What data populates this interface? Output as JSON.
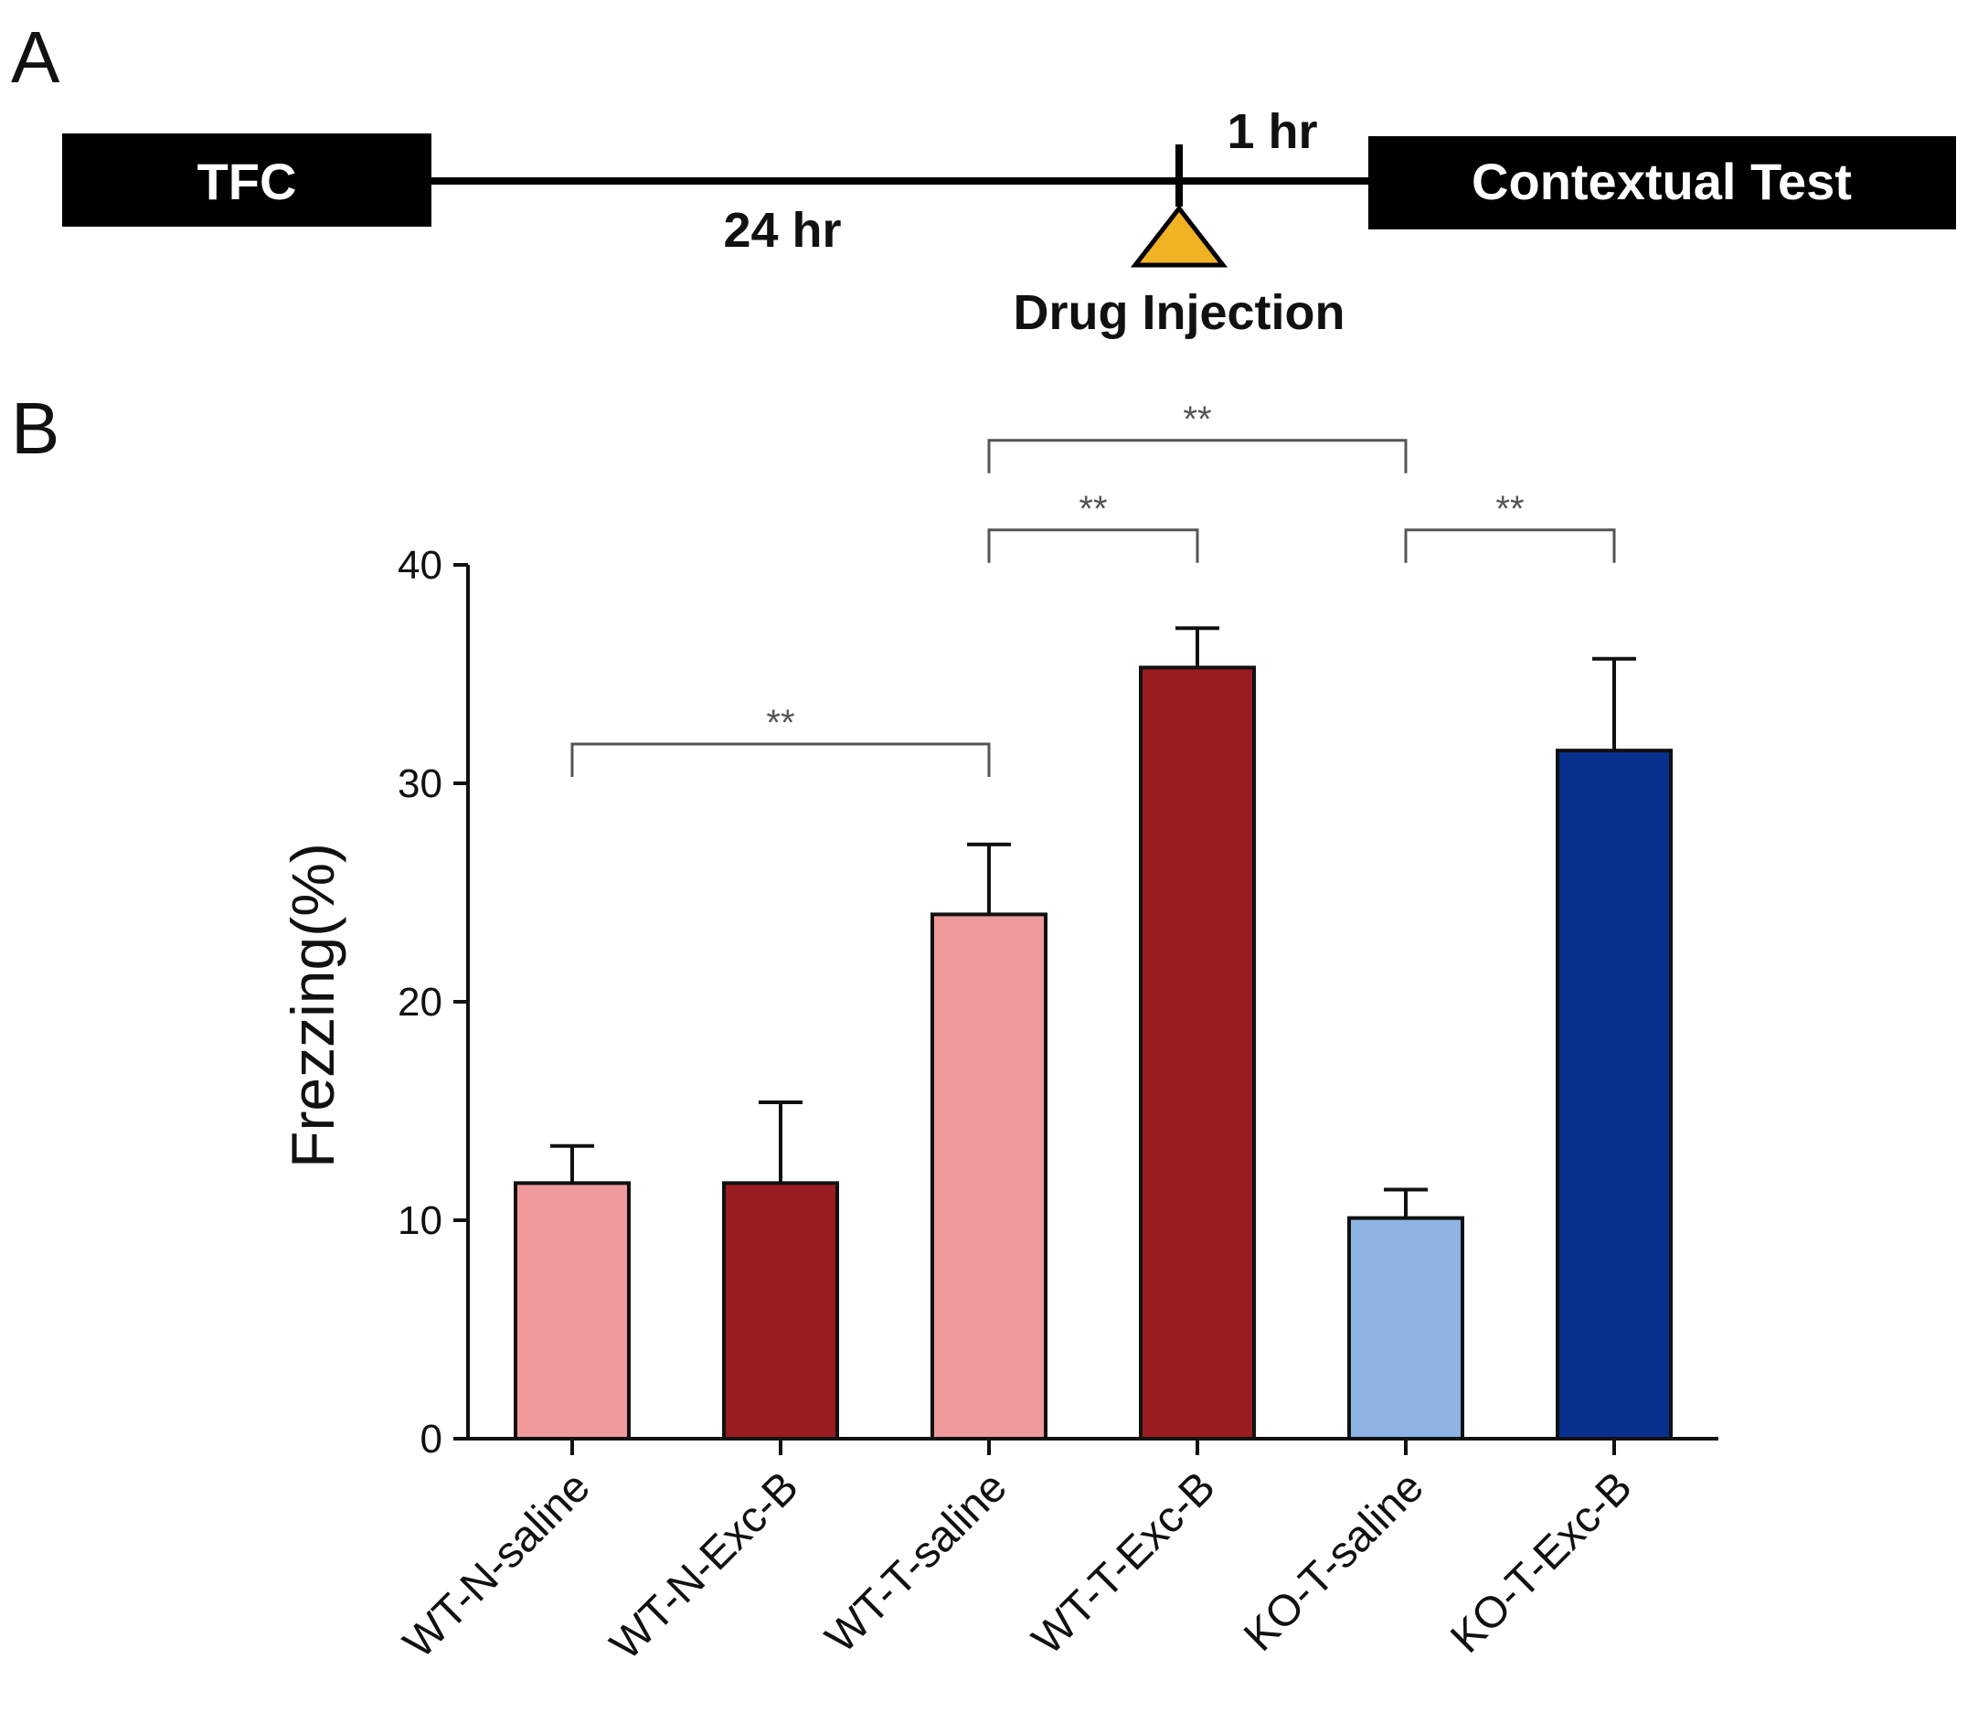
{
  "panel_a": {
    "label": "A",
    "start_box": "TFC",
    "end_box": "Contextual Test",
    "interval_1": "24 hr",
    "interval_2": "1 hr",
    "event": "Drug Injection",
    "colors": {
      "box": "#000000",
      "marker": "#f0b323"
    }
  },
  "panel_b": {
    "label": "B"
  },
  "chart_data": {
    "type": "bar",
    "title": "",
    "xlabel": "",
    "ylabel": "Frezzing(%)",
    "ylim": [
      0,
      40
    ],
    "yticks": [
      0,
      10,
      20,
      30,
      40
    ],
    "categories": [
      "WT-N-saline",
      "WT-N-Exc-B",
      "WT-T-saline",
      "WT-T-Exc-B",
      "KO-T-saline",
      "KO-T-Exc-B"
    ],
    "values": [
      11.7,
      11.7,
      24.0,
      35.3,
      10.1,
      31.5
    ],
    "errors": [
      1.7,
      3.7,
      3.2,
      1.8,
      1.3,
      4.2
    ],
    "bar_colors": [
      "#ef9a9b",
      "#991c20",
      "#ef9a9b",
      "#991c20",
      "#8db4e2",
      "#08308e"
    ],
    "significance": [
      {
        "from": 0,
        "to": 2,
        "label": "**",
        "level": 31.8
      },
      {
        "from": 2,
        "to": 3,
        "label": "**",
        "level": 41.6
      },
      {
        "from": 4,
        "to": 5,
        "label": "**",
        "level": 41.6
      },
      {
        "from": 2,
        "to": 4,
        "label": "**",
        "level": 45.7
      }
    ]
  }
}
